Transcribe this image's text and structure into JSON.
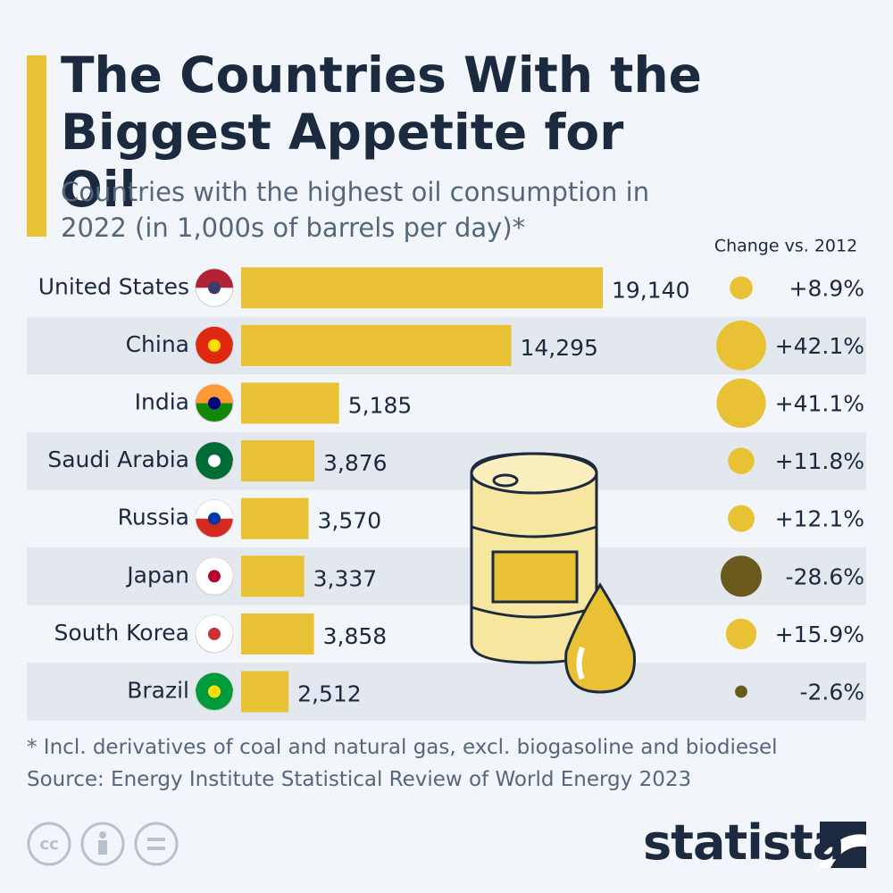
{
  "chart_data": {
    "type": "bar",
    "title": "The Countries With the Biggest Appetite for Oil",
    "subtitle": "Countries with the highest oil consumption in 2022 (in 1,000s of barrels per day)*",
    "categories": [
      "United States",
      "China",
      "India",
      "Saudi Arabia",
      "Russia",
      "Japan",
      "South Korea",
      "Brazil"
    ],
    "values": [
      19140,
      14295,
      5185,
      3876,
      3570,
      3337,
      3858,
      2512
    ],
    "value_labels": [
      "19,140",
      "14,295",
      "5,185",
      "3,876",
      "3,570",
      "3,337",
      "3,858",
      "2,512"
    ],
    "color": "#e8c234",
    "change": {
      "title": "Change vs. 2012",
      "values": [
        8.9,
        42.1,
        41.1,
        11.8,
        12.1,
        -28.6,
        15.9,
        -2.6
      ],
      "value_labels": [
        "+8.9%",
        "+42.1%",
        "+41.1%",
        "+11.8%",
        "+12.1%",
        "-28.6%",
        "+15.9%",
        "-2.6%"
      ],
      "positive_color": "#e8c234",
      "negative_color": "#6b5a1e"
    },
    "footnote": "* Incl. derivatives of coal and natural gas, excl. biogasoline and biodiesel",
    "source": "Source: Energy Institute Statistical Review of World Energy 2023",
    "brand": "statista"
  }
}
